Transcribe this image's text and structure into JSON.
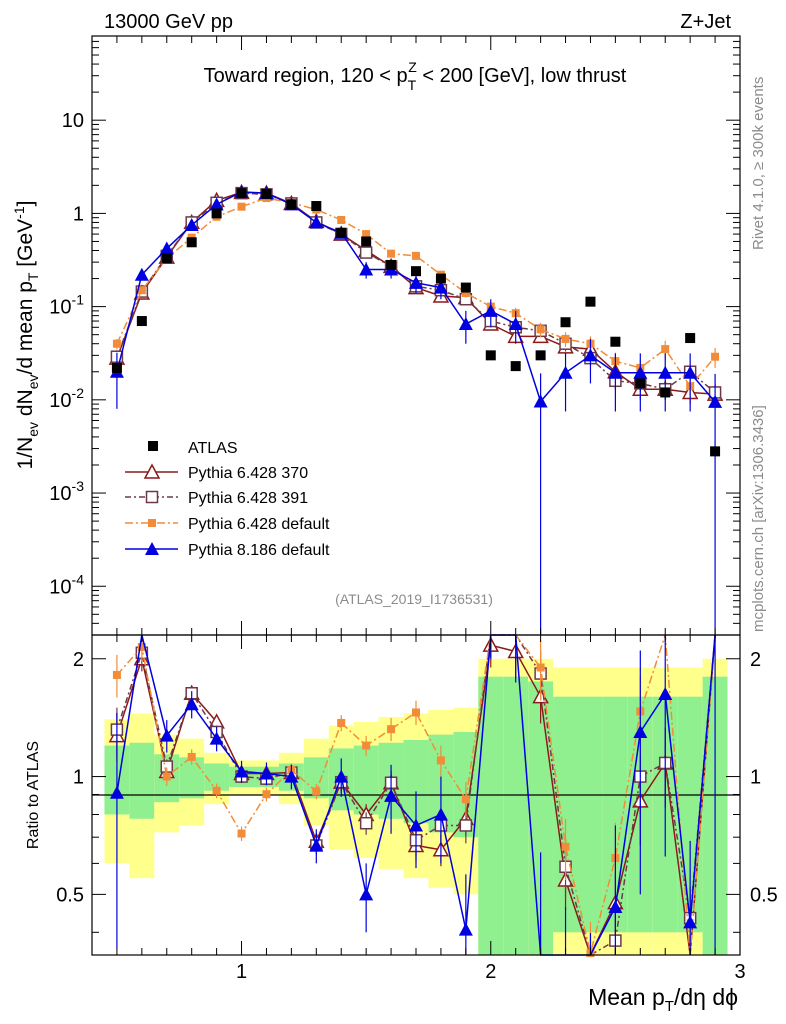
{
  "header": {
    "left": "13000 GeV pp",
    "right": "Z+Jet"
  },
  "chart_data": {
    "type": "scatter",
    "title": "Toward region, 120 < p_T^Z < 200 [GeV], low thrust",
    "title_parts": {
      "a": "Toward region, 120 < p",
      "sub": "T",
      "sup": "Z",
      "b": " < 200 [GeV], low thrust"
    },
    "analysis_tag": "(ATLAS_2019_I1736531)",
    "side_label_1": "Rivet 4.1.0, ≥ 300k events",
    "side_label_2": "mcplots.cern.ch [arXiv:1306.3436]",
    "xlabel": {
      "a": "Mean p",
      "sub": "T",
      "b": "/dη dϕ"
    },
    "ylabel": {
      "a": "1/N",
      "s1": "ev",
      "b": " dN",
      "s2": "ev",
      "c": "/d mean p",
      "s3": "T",
      "d": " [GeV",
      "sup": "-1",
      "e": "]"
    },
    "ratio_ylabel": "Ratio to ATLAS",
    "xlim": [
      0.4,
      3.0
    ],
    "ylim": [
      3e-05,
      80
    ],
    "yscale": "log",
    "ratio_ylim": [
      0.35,
      2.3
    ],
    "x_ticks": [
      "1",
      "2",
      "3"
    ],
    "y_ticks": [
      {
        "v": 10,
        "base": "10",
        "exp": ""
      },
      {
        "v": 1,
        "base": "1",
        "exp": ""
      },
      {
        "v": 0.1,
        "base": "10",
        "exp": "-1"
      },
      {
        "v": 0.01,
        "base": "10",
        "exp": "-2"
      },
      {
        "v": 0.001,
        "base": "10",
        "exp": "-3"
      },
      {
        "v": 0.0001,
        "base": "10",
        "exp": "-4"
      }
    ],
    "ratio_ticks": [
      "0.5",
      "1",
      "2"
    ],
    "x": [
      0.5,
      0.6,
      0.7,
      0.8,
      0.9,
      1.0,
      1.1,
      1.2,
      1.3,
      1.4,
      1.5,
      1.6,
      1.7,
      1.8,
      1.9,
      2.0,
      2.1,
      2.2,
      2.3,
      2.4,
      2.5,
      2.6,
      2.7,
      2.8,
      2.9
    ],
    "data": {
      "name": "ATLAS",
      "values": [
        0.022,
        0.07,
        0.33,
        0.49,
        1.0,
        1.65,
        1.62,
        1.25,
        1.2,
        0.62,
        0.5,
        0.28,
        0.24,
        0.2,
        0.16,
        0.03,
        0.023,
        0.03,
        0.068,
        0.113,
        0.042,
        0.015,
        0.012,
        0.046,
        0.0028
      ],
      "ratio_band_inner": [
        0.2,
        0.22,
        0.14,
        0.12,
        0.08,
        0.06,
        0.06,
        0.08,
        0.12,
        0.18,
        0.2,
        0.22,
        0.24,
        0.28,
        0.3,
        0.8,
        0.8,
        0.75,
        0.6,
        0.6,
        0.6,
        0.6,
        0.6,
        0.6,
        0.8
      ],
      "ratio_band_outer": [
        0.4,
        0.45,
        0.28,
        0.25,
        0.15,
        0.1,
        0.1,
        0.15,
        0.25,
        0.35,
        0.38,
        0.42,
        0.45,
        0.48,
        0.5,
        1.0,
        1.0,
        1.0,
        0.9,
        0.9,
        0.9,
        0.9,
        0.9,
        0.9,
        1.0
      ]
    },
    "series": [
      {
        "name": "Pythia 6.428 370",
        "color": "#8b1a1a",
        "marker": "triangle-open",
        "dash": "",
        "values": [
          0.028,
          0.14,
          0.34,
          0.8,
          1.38,
          1.68,
          1.65,
          1.28,
          0.82,
          0.6,
          0.4,
          0.27,
          0.16,
          0.13,
          0.125,
          0.065,
          0.048,
          0.048,
          0.037,
          0.035,
          0.02,
          0.013,
          0.013,
          0.012,
          0.0115
        ],
        "errors": [
          0.004,
          0.01,
          0.015,
          0.03,
          0.05,
          0.06,
          0.06,
          0.05,
          0.04,
          0.03,
          0.025,
          0.02,
          0.015,
          0.012,
          0.012,
          0.008,
          0.007,
          0.007,
          0.006,
          0.006,
          0.004,
          0.003,
          0.003,
          0.003,
          0.003
        ]
      },
      {
        "name": "Pythia 6.428 391",
        "color": "#6b3a4a",
        "marker": "square-open",
        "dash": "6,3,2,3",
        "values": [
          0.029,
          0.145,
          0.35,
          0.8,
          1.3,
          1.65,
          1.6,
          1.28,
          0.8,
          0.6,
          0.38,
          0.27,
          0.165,
          0.15,
          0.12,
          0.07,
          0.06,
          0.055,
          0.04,
          0.028,
          0.016,
          0.015,
          0.013,
          0.02,
          0.012
        ],
        "errors": [
          0.004,
          0.01,
          0.015,
          0.03,
          0.05,
          0.06,
          0.06,
          0.05,
          0.04,
          0.03,
          0.025,
          0.02,
          0.015,
          0.014,
          0.012,
          0.009,
          0.008,
          0.008,
          0.007,
          0.005,
          0.003,
          0.003,
          0.003,
          0.004,
          0.003
        ]
      },
      {
        "name": "Pythia 6.428 default",
        "color": "#f28c38",
        "marker": "square-filled",
        "dash": "8,3,2,3",
        "values": [
          0.04,
          0.15,
          0.33,
          0.55,
          0.92,
          1.18,
          1.46,
          1.3,
          1.1,
          0.85,
          0.6,
          0.37,
          0.35,
          0.22,
          0.14,
          0.1,
          0.085,
          0.057,
          0.045,
          0.04,
          0.026,
          0.022,
          0.035,
          0.014,
          0.029
        ],
        "errors": [
          0.005,
          0.012,
          0.018,
          0.025,
          0.04,
          0.05,
          0.06,
          0.05,
          0.05,
          0.04,
          0.035,
          0.025,
          0.025,
          0.02,
          0.015,
          0.012,
          0.012,
          0.01,
          0.008,
          0.008,
          0.006,
          0.005,
          0.008,
          0.004,
          0.007
        ]
      },
      {
        "name": "Pythia 8.186 default",
        "color": "#0000e0",
        "marker": "triangle-filled",
        "dash": "",
        "values": [
          0.02,
          0.22,
          0.42,
          0.75,
          1.25,
          1.7,
          1.65,
          1.25,
          0.8,
          0.62,
          0.25,
          0.25,
          0.18,
          0.16,
          0.065,
          0.09,
          0.065,
          0.0096,
          0.0195,
          0.03,
          0.0195,
          0.0195,
          0.0195,
          0.0195,
          0.0095
        ],
        "errors": [
          0.012,
          0.025,
          0.04,
          0.06,
          0.09,
          0.11,
          0.11,
          0.09,
          0.08,
          0.07,
          0.05,
          0.05,
          0.04,
          0.04,
          0.025,
          0.03,
          0.025,
          0.0096,
          0.012,
          0.015,
          0.012,
          0.012,
          0.012,
          0.012,
          0.0095
        ]
      }
    ]
  }
}
